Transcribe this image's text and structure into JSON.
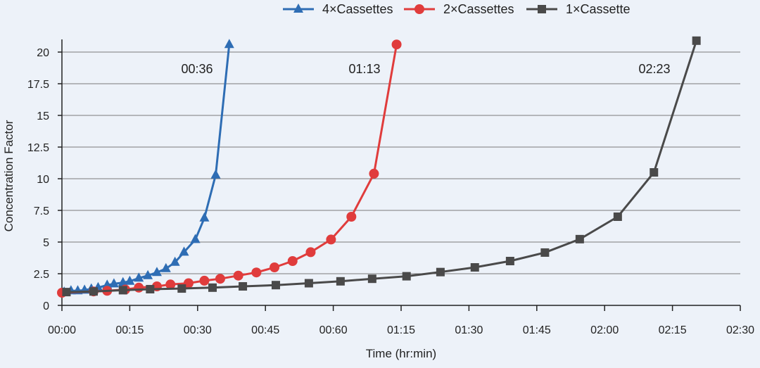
{
  "chart_data": {
    "type": "line",
    "title": "",
    "xlabel": "Time (hr:min)",
    "ylabel": "Concentration Factor",
    "xlim_minutes": [
      0,
      150
    ],
    "ylim": [
      0,
      21
    ],
    "x_ticks": [
      "00:00",
      "00:15",
      "00:30",
      "00:45",
      "00:60",
      "01:15",
      "01:30",
      "01:45",
      "02:00",
      "02:15",
      "02:30"
    ],
    "x_tick_minutes": [
      0,
      15,
      30,
      45,
      60,
      75,
      90,
      105,
      120,
      135,
      150
    ],
    "y_ticks": [
      "0",
      "2.5",
      "5",
      "7.5",
      "10",
      "12.5",
      "15",
      "17.5",
      "20"
    ],
    "y_tick_values": [
      0,
      2.5,
      5,
      7.5,
      10,
      12.5,
      15,
      17.5,
      20
    ],
    "grid": "horizontal",
    "legend_position": "top",
    "series": [
      {
        "name": "4×Cassettes",
        "color": "#2e6db4",
        "marker": "triangle",
        "x": [
          0.5,
          2,
          3.5,
          5,
          6.5,
          8,
          10,
          11.5,
          13.5,
          15,
          17,
          19,
          21,
          23,
          25,
          27,
          29.5,
          31.5,
          34,
          37
        ],
        "y": [
          1.05,
          1.15,
          1.15,
          1.2,
          1.3,
          1.4,
          1.6,
          1.7,
          1.8,
          1.9,
          2.15,
          2.35,
          2.6,
          2.9,
          3.4,
          4.2,
          5.2,
          6.9,
          10.3,
          20.6
        ]
      },
      {
        "name": "2×Cassettes",
        "color": "#e03c3c",
        "marker": "circle",
        "x": [
          0,
          7,
          10,
          14,
          17,
          21,
          24,
          28,
          31.5,
          35,
          39,
          43,
          47,
          51,
          55,
          59.5,
          64,
          69,
          74
        ],
        "y": [
          1.0,
          1.1,
          1.15,
          1.25,
          1.4,
          1.5,
          1.65,
          1.75,
          1.95,
          2.1,
          2.35,
          2.6,
          3.0,
          3.5,
          4.2,
          5.2,
          7.0,
          10.4,
          20.6
        ]
      },
      {
        "name": "1×Cassette",
        "color": "#4a4a4a",
        "marker": "square",
        "x": [
          1,
          7,
          13.5,
          19.5,
          26.5,
          33.3,
          40,
          47.3,
          54.6,
          61.6,
          68.6,
          76.2,
          83.7,
          91.3,
          99.1,
          106.8,
          114.5,
          122.9,
          130.9,
          140.3
        ],
        "y": [
          1.05,
          1.1,
          1.2,
          1.28,
          1.33,
          1.4,
          1.5,
          1.6,
          1.75,
          1.9,
          2.1,
          2.3,
          2.63,
          3.0,
          3.5,
          4.17,
          5.23,
          7.0,
          10.5,
          20.9
        ]
      }
    ],
    "annotations": [
      {
        "text": "00:36",
        "series": "4×Cassettes"
      },
      {
        "text": "01:13",
        "series": "2×Cassettes"
      },
      {
        "text": "02:23",
        "series": "1×Cassette"
      }
    ]
  }
}
